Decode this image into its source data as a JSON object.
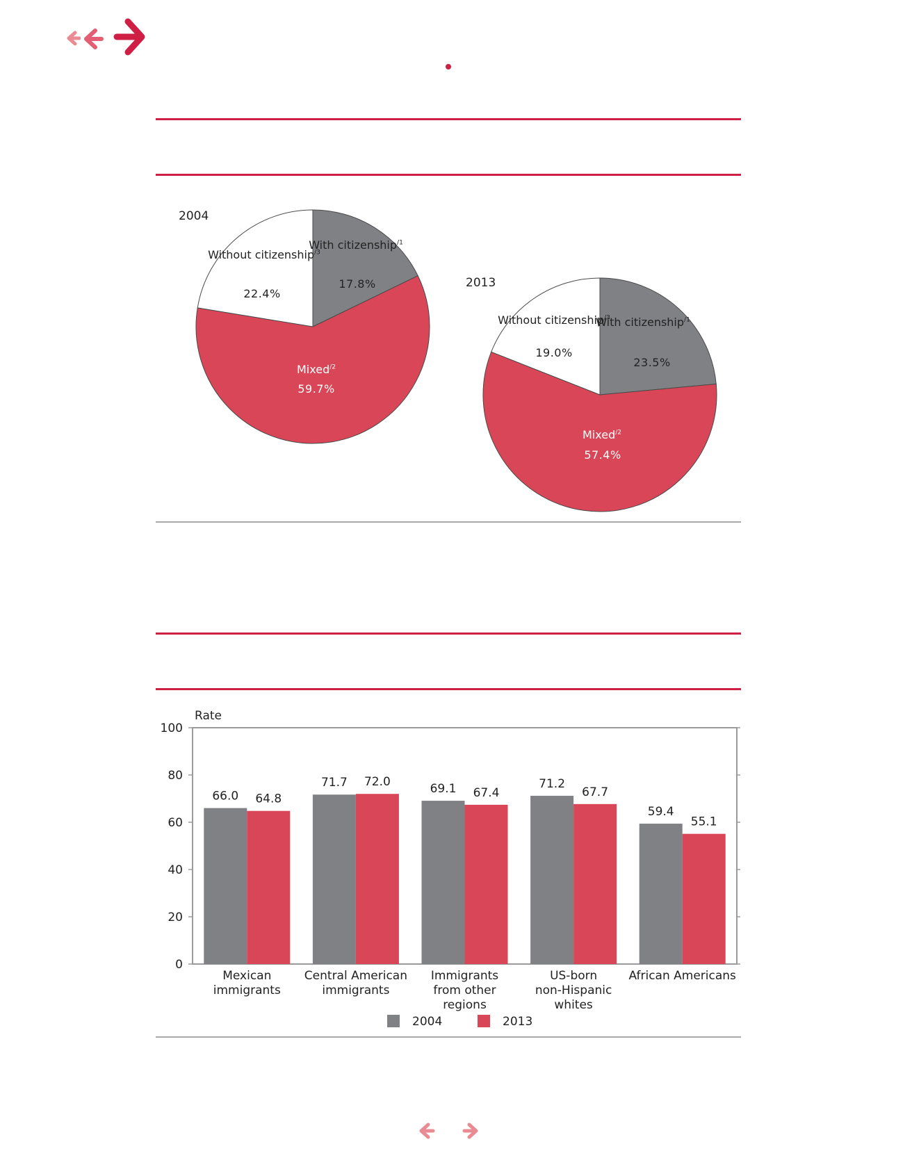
{
  "nav": {
    "top_back_small": "arrow-left-small-icon",
    "top_back": "arrow-left-icon",
    "top_forward": "arrow-right-icon",
    "bottom_prev": "arrow-left-icon",
    "bottom_next": "arrow-right-icon"
  },
  "colors": {
    "accent": "#cf1f45",
    "nav_light": "#e88b93",
    "gray": "#808184",
    "red": "#d84657",
    "rule_gray": "#a9a9a9"
  },
  "chart_data": [
    {
      "type": "pie",
      "title": "2004",
      "slices": [
        {
          "label": "With citizenship",
          "note": "/1",
          "value": 17.8,
          "display": "17.8%",
          "color": "#808184"
        },
        {
          "label": "Mixed",
          "note": "/2",
          "value": 59.7,
          "display": "59.7%",
          "color": "#d84657"
        },
        {
          "label": "Without citizenship",
          "note": "/3",
          "value": 22.4,
          "display": "22.4%",
          "color": "#ffffff"
        }
      ]
    },
    {
      "type": "pie",
      "title": "2013",
      "slices": [
        {
          "label": "With citizenship",
          "note": "/1",
          "value": 23.5,
          "display": "23.5%",
          "color": "#808184"
        },
        {
          "label": "Mixed",
          "note": "/2",
          "value": 57.4,
          "display": "57.4%",
          "color": "#d84657"
        },
        {
          "label": "Without citizenship",
          "note": "/3",
          "value": 19.0,
          "display": "19.0%",
          "color": "#ffffff"
        }
      ]
    },
    {
      "type": "bar",
      "ylabel": "Rate",
      "ylim": [
        0,
        100
      ],
      "yticks": [
        0,
        20,
        40,
        60,
        80,
        100
      ],
      "categories": [
        [
          "Mexican",
          "immigrants"
        ],
        [
          "Central American",
          "immigrants"
        ],
        [
          "Immigrants",
          "from other",
          "regions"
        ],
        [
          "US-born",
          "non-Hispanic",
          "whites"
        ],
        [
          "African Americans"
        ]
      ],
      "series": [
        {
          "name": "2004",
          "color": "#808184",
          "values": [
            66.0,
            71.7,
            69.1,
            71.2,
            59.4
          ],
          "labels": [
            "66.0",
            "71.7",
            "69.1",
            "71.2",
            "59.4"
          ]
        },
        {
          "name": "2013",
          "color": "#d84657",
          "values": [
            64.8,
            72.0,
            67.4,
            67.7,
            55.1
          ],
          "labels": [
            "64.8",
            "72.0",
            "67.4",
            "67.7",
            "55.1"
          ]
        }
      ],
      "legend": "bottom-center"
    }
  ]
}
